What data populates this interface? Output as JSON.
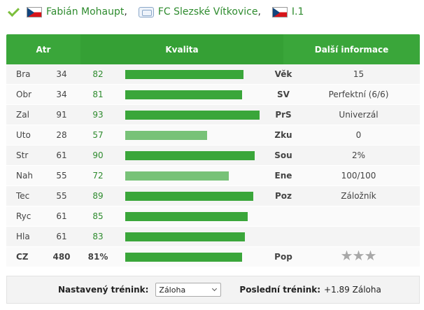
{
  "header": {
    "player_name": "Fabián Mohaupt",
    "team_name": "FC Slezské Vítkovice",
    "league": "I.1",
    "separator": ","
  },
  "table": {
    "headers": {
      "atr": "Atr",
      "kvalita": "Kvalita",
      "info": "Další informace"
    },
    "rows": [
      {
        "attr": "Bra",
        "value": "34",
        "quality": "82",
        "quality_pct": 82,
        "light": false,
        "info_label": "Věk",
        "info_value": "15"
      },
      {
        "attr": "Obr",
        "value": "34",
        "quality": "81",
        "quality_pct": 81,
        "light": false,
        "info_label": "SV",
        "info_value": "Perfektní (6/6)"
      },
      {
        "attr": "Zal",
        "value": "91",
        "quality": "93",
        "quality_pct": 93,
        "light": false,
        "info_label": "PrS",
        "info_value": "Univerzál"
      },
      {
        "attr": "Uto",
        "value": "28",
        "quality": "57",
        "quality_pct": 57,
        "light": true,
        "info_label": "Zku",
        "info_value": "0"
      },
      {
        "attr": "Str",
        "value": "61",
        "quality": "90",
        "quality_pct": 90,
        "light": false,
        "info_label": "Sou",
        "info_value": "2%"
      },
      {
        "attr": "Nah",
        "value": "55",
        "quality": "72",
        "quality_pct": 72,
        "light": true,
        "info_label": "Ene",
        "info_value": "100/100"
      },
      {
        "attr": "Tec",
        "value": "55",
        "quality": "89",
        "quality_pct": 89,
        "light": false,
        "info_label": "Poz",
        "info_value": "Záložník"
      },
      {
        "attr": "Ryc",
        "value": "61",
        "quality": "85",
        "quality_pct": 85,
        "light": false,
        "info_label": "",
        "info_value": ""
      },
      {
        "attr": "Hla",
        "value": "61",
        "quality": "83",
        "quality_pct": 83,
        "light": false,
        "info_label": "",
        "info_value": ""
      }
    ],
    "total": {
      "attr": "CZ",
      "value": "480",
      "quality": "81%",
      "quality_pct": 81,
      "info_label": "Pop",
      "stars_filled": 0,
      "stars_total": 3
    }
  },
  "training": {
    "set_label": "Nastavený trénink:",
    "selected": "Záloha",
    "last_label": "Poslední trénink:",
    "last_value": "+1.89 Záloha"
  },
  "colors": {
    "accent": "#3aa63a",
    "accent_light": "#78c278",
    "link": "#2e8b2e"
  }
}
